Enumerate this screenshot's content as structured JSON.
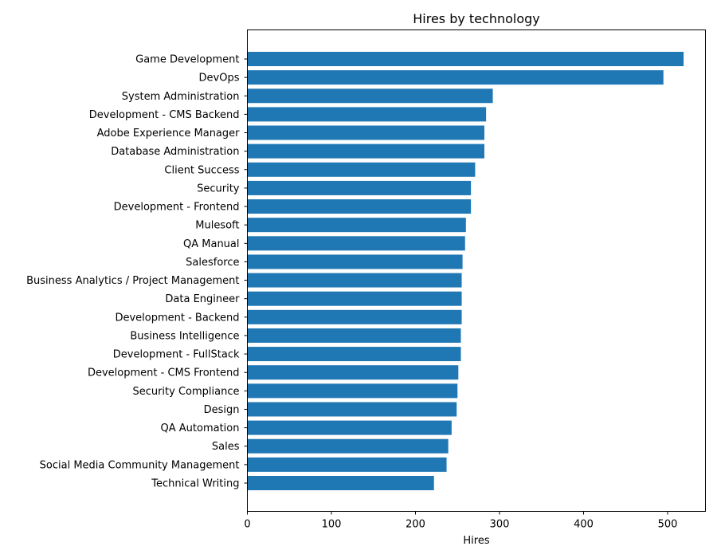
{
  "chart_data": {
    "type": "bar",
    "orientation": "horizontal",
    "title": "Hires by technology",
    "xlabel": "Hires",
    "ylabel": "",
    "xlim": [
      0,
      545
    ],
    "xticks": [
      0,
      100,
      200,
      300,
      400,
      500
    ],
    "grid": false,
    "bar_color": "#1f77b4",
    "categories": [
      "Game Development",
      "DevOps",
      "System Administration",
      "Development - CMS Backend",
      "Adobe Experience Manager",
      "Database Administration",
      "Client Success",
      "Security",
      "Development - Frontend",
      "Mulesoft",
      "QA Manual",
      "Salesforce",
      "Business Analytics / Project Management",
      "Data Engineer",
      "Development - Backend",
      "Business Intelligence",
      "Development - FullStack",
      "Development - CMS Frontend",
      "Security Compliance",
      "Design",
      "QA Automation",
      "Sales",
      "Social Media Community Management",
      "Technical Writing"
    ],
    "values": [
      519,
      495,
      292,
      284,
      282,
      282,
      271,
      266,
      266,
      260,
      259,
      256,
      255,
      255,
      255,
      254,
      254,
      251,
      250,
      249,
      243,
      239,
      237,
      222
    ]
  }
}
